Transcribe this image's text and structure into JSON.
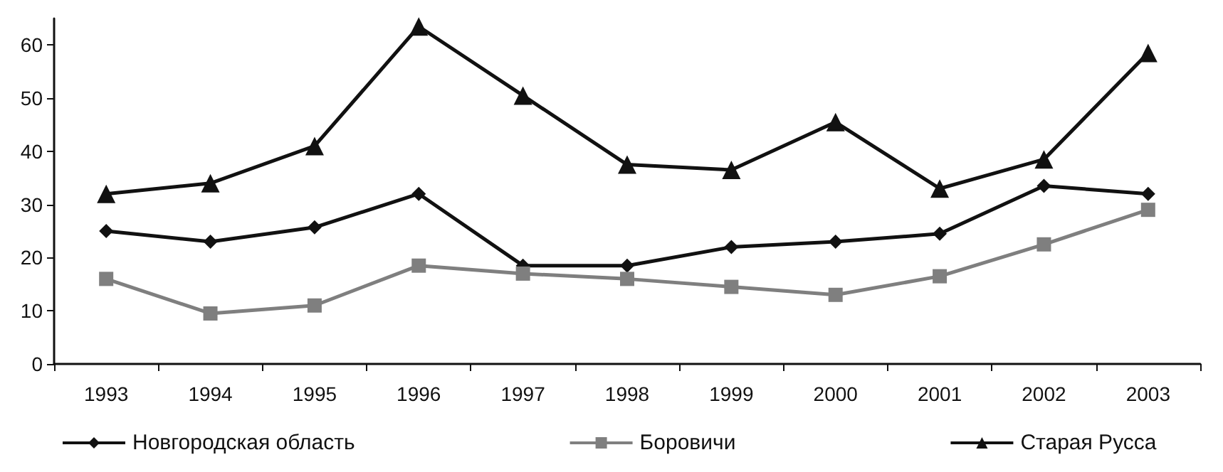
{
  "chart_data": {
    "type": "line",
    "categories": [
      "1993",
      "1994",
      "1995",
      "1996",
      "1997",
      "1998",
      "1999",
      "2000",
      "2001",
      "2002",
      "2003"
    ],
    "series": [
      {
        "name": "Новгородская область",
        "color": "#111111",
        "marker": "diamond",
        "values": [
          25,
          23,
          25.7,
          32,
          18.5,
          18.5,
          22,
          23,
          24.5,
          33.5,
          32
        ]
      },
      {
        "name": "Боровичи",
        "color": "#7f7f7f",
        "marker": "square",
        "values": [
          16,
          9.5,
          11,
          18.5,
          17,
          16,
          14.5,
          13,
          16.5,
          22.5,
          29
        ]
      },
      {
        "name": "Старая Русса",
        "color": "#111111",
        "marker": "triangle",
        "values": [
          32,
          34,
          41,
          63.5,
          50.5,
          37.5,
          36.5,
          45.5,
          33,
          38.5,
          58.5
        ]
      }
    ],
    "ylim": [
      0,
      65
    ],
    "yticks": [
      0,
      10,
      20,
      30,
      40,
      50,
      60
    ],
    "grid": false,
    "legend": "bottom",
    "line_style": "solid"
  }
}
